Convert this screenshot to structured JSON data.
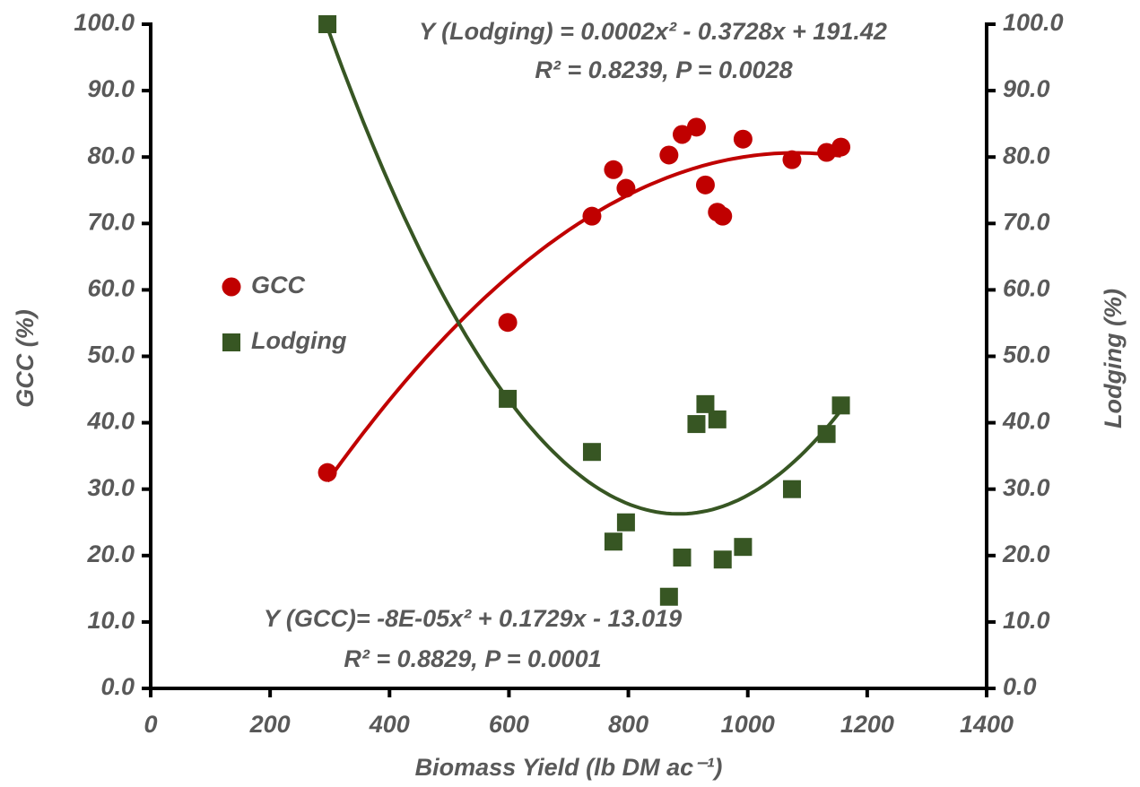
{
  "chart_data": {
    "type": "scatter",
    "xlabel": "Biomass Yield (lb DM ac⁻¹)",
    "ylabel": "GCC (%)",
    "y2label": "Lodging (%)",
    "annotations": [
      "Y (Lodging) = 0.0002x² - 0.3728x + 191.42",
      "R² = 0.8239, P = 0.0028",
      "Y  (GCC)= -8E-05x² + 0.1729x - 13.019",
      "R² = 0.8829, P = 0.0001"
    ],
    "x": [
      296,
      598,
      739,
      775,
      796,
      868,
      890,
      914,
      929,
      949,
      958,
      992,
      1074,
      1132,
      1156
    ],
    "series": [
      {
        "name": "GCC",
        "color": "#c00000",
        "marker": "circle",
        "trendline": "quadratic",
        "values": [
          32.5,
          55.1,
          71.1,
          78.1,
          75.3,
          80.3,
          83.4,
          84.5,
          75.8,
          71.7,
          71.1,
          82.7,
          79.6,
          80.7,
          81.5
        ]
      },
      {
        "name": "Lodging",
        "color": "#375623",
        "marker": "square",
        "axis": "y2",
        "trendline": "quadratic",
        "values": [
          100,
          43.6,
          35.6,
          22.1,
          25.0,
          13.8,
          19.7,
          39.8,
          42.8,
          40.5,
          19.4,
          21.3,
          30.0,
          38.3,
          42.6
        ]
      }
    ],
    "xlim": [
      0,
      1400
    ],
    "xticks": [
      0,
      200,
      400,
      600,
      800,
      1000,
      1200,
      1400
    ],
    "ylim": [
      0,
      100
    ],
    "yticks": [
      {
        "value": 0,
        "label": "0.0"
      },
      {
        "value": 10,
        "label": "10.0"
      },
      {
        "value": 20,
        "label": "20.0"
      },
      {
        "value": 30,
        "label": "30.0"
      },
      {
        "value": 40,
        "label": "40.0"
      },
      {
        "value": 50,
        "label": "50.0"
      },
      {
        "value": 60,
        "label": "60.0"
      },
      {
        "value": 70,
        "label": "70.0"
      },
      {
        "value": 80,
        "label": "80.0"
      },
      {
        "value": 90,
        "label": "90.0"
      },
      {
        "value": 100,
        "label": "100.0"
      }
    ],
    "y2lim": [
      0,
      100
    ],
    "y2ticks": [
      {
        "value": 0,
        "label": "0.0"
      },
      {
        "value": 10,
        "label": "10.0"
      },
      {
        "value": 20,
        "label": "20.0"
      },
      {
        "value": 30,
        "label": "30.0"
      },
      {
        "value": 40,
        "label": "40.0"
      },
      {
        "value": 50,
        "label": "50.0"
      },
      {
        "value": 60,
        "label": "60.0"
      },
      {
        "value": 70,
        "label": "70.0"
      },
      {
        "value": 80,
        "label": "80.0"
      },
      {
        "value": 90,
        "label": "90.0"
      },
      {
        "value": 100,
        "label": "100.0"
      }
    ],
    "grid": false,
    "legend": "left"
  }
}
